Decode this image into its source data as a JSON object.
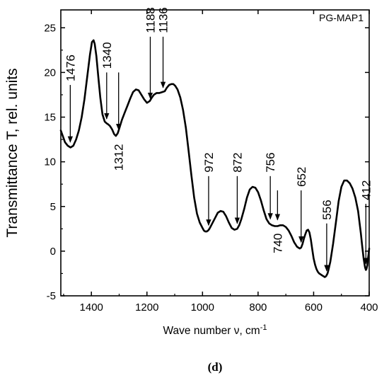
{
  "chart_data": {
    "type": "line",
    "sample_label": "PG-MAP1",
    "panel_label": "(d)",
    "xlabel": "Wave number ν, cm",
    "xlabel_sup": "-1",
    "ylabel": "Transmittance T, rel. units",
    "xlim": [
      1510,
      400
    ],
    "ylim": [
      -5,
      27
    ],
    "x_reversed": true,
    "x_ticks": [
      1400,
      1200,
      1000,
      800,
      600,
      400
    ],
    "y_ticks": [
      -5,
      0,
      5,
      10,
      15,
      20,
      25
    ],
    "grid": false,
    "series": [
      {
        "x": [
          1510,
          1495,
          1485,
          1475,
          1465,
          1455,
          1445,
          1435,
          1425,
          1415,
          1405,
          1398,
          1392,
          1388,
          1382,
          1375,
          1368,
          1360,
          1352,
          1345,
          1340,
          1333,
          1325,
          1318,
          1312,
          1305,
          1298,
          1290,
          1280,
          1270,
          1260,
          1250,
          1240,
          1230,
          1220,
          1210,
          1200,
          1190,
          1182,
          1175,
          1165,
          1155,
          1145,
          1136,
          1128,
          1120,
          1112,
          1105,
          1098,
          1090,
          1080,
          1070,
          1060,
          1050,
          1040,
          1030,
          1020,
          1010,
          1000,
          995,
          990,
          985,
          980,
          975,
          970,
          965,
          955,
          945,
          935,
          925,
          915,
          905,
          895,
          885,
          875,
          868,
          860,
          850,
          840,
          830,
          820,
          810,
          800,
          790,
          780,
          770,
          760,
          750,
          740,
          730,
          720,
          710,
          700,
          690,
          680,
          670,
          660,
          650,
          645,
          640,
          635,
          630,
          625,
          620,
          615,
          610,
          605,
          600,
          595,
          590,
          585,
          580,
          575,
          570,
          565,
          560,
          555,
          550,
          545,
          540,
          530,
          520,
          510,
          500,
          490,
          480,
          470,
          460,
          450,
          440,
          430,
          425,
          420,
          415,
          412,
          410,
          407,
          405,
          402,
          400
        ],
        "y": [
          13.5,
          12.2,
          11.8,
          11.6,
          11.8,
          12.5,
          13.5,
          15.0,
          17.0,
          19.5,
          22.0,
          23.4,
          23.6,
          23.2,
          21.8,
          19.5,
          17.2,
          15.3,
          14.5,
          14.3,
          14.2,
          14.0,
          13.6,
          13.1,
          12.9,
          13.2,
          13.9,
          14.7,
          15.5,
          16.3,
          17.1,
          17.8,
          18.1,
          18.0,
          17.5,
          17.0,
          16.6,
          16.8,
          17.2,
          17.5,
          17.7,
          17.7,
          17.8,
          17.9,
          18.3,
          18.6,
          18.7,
          18.7,
          18.5,
          18.1,
          17.2,
          15.8,
          13.8,
          11.2,
          8.5,
          6.0,
          4.2,
          3.2,
          2.6,
          2.3,
          2.2,
          2.2,
          2.3,
          2.5,
          2.8,
          3.1,
          3.7,
          4.3,
          4.5,
          4.4,
          3.9,
          3.2,
          2.6,
          2.4,
          2.5,
          2.9,
          3.6,
          4.7,
          6.0,
          6.9,
          7.2,
          7.1,
          6.6,
          5.7,
          4.6,
          3.6,
          3.1,
          2.9,
          2.8,
          2.8,
          2.9,
          2.9,
          2.7,
          2.3,
          1.7,
          1.0,
          0.5,
          0.3,
          0.4,
          0.8,
          1.4,
          1.9,
          2.3,
          2.4,
          2.1,
          1.3,
          0.2,
          -0.8,
          -1.5,
          -2.0,
          -2.3,
          -2.5,
          -2.6,
          -2.7,
          -2.8,
          -2.9,
          -2.8,
          -2.5,
          -1.9,
          -1.2,
          0.8,
          3.2,
          5.6,
          7.2,
          7.9,
          7.9,
          7.6,
          7.0,
          6.0,
          4.5,
          2.0,
          0.5,
          -0.8,
          -1.8,
          -2.1,
          -2.0,
          -1.6,
          -1.0,
          -0.3,
          0.3
        ]
      }
    ],
    "annotations": [
      {
        "label": "1476",
        "x": 1476,
        "y_tip": 12.2,
        "y_tail": 18.6,
        "label_pos": "above",
        "y_label": 19.0
      },
      {
        "label": "1340",
        "x": 1345,
        "y_tip": 14.8,
        "y_tail": 20.0,
        "label_pos": "above",
        "y_label": 20.4
      },
      {
        "label": "1312",
        "x": 1302,
        "y_tip": 13.6,
        "y_tail": 20.0,
        "label_pos": "below",
        "y_label": 12.0
      },
      {
        "label": "1188",
        "x": 1188,
        "y_tip": 17.1,
        "y_tail": 24.0,
        "label_pos": "above",
        "y_label": 24.4
      },
      {
        "label": "1136",
        "x": 1142,
        "y_tip": 18.3,
        "y_tail": 24.0,
        "label_pos": "above",
        "y_label": 24.4
      },
      {
        "label": "972",
        "x": 978,
        "y_tip": 2.9,
        "y_tail": 8.4,
        "label_pos": "above",
        "y_label": 8.8
      },
      {
        "label": "872",
        "x": 875,
        "y_tip": 3.1,
        "y_tail": 8.4,
        "label_pos": "above",
        "y_label": 8.8
      },
      {
        "label": "756",
        "x": 756,
        "y_tip": 3.6,
        "y_tail": 8.4,
        "label_pos": "above",
        "y_label": 8.8
      },
      {
        "label": "740",
        "x": 730,
        "y_tip": 3.5,
        "y_tail": 6.8,
        "label_pos": "below",
        "y_label": 2.0
      },
      {
        "label": "652",
        "x": 645,
        "y_tip": 1.0,
        "y_tail": 6.8,
        "label_pos": "above",
        "y_label": 7.2
      },
      {
        "label": "556",
        "x": 553,
        "y_tip": -2.2,
        "y_tail": 3.1,
        "label_pos": "above",
        "y_label": 3.5
      },
      {
        "label": "412",
        "x": 412,
        "y_tip": -1.4,
        "y_tail": 5.3,
        "label_pos": "above",
        "y_label": 5.7
      }
    ]
  }
}
